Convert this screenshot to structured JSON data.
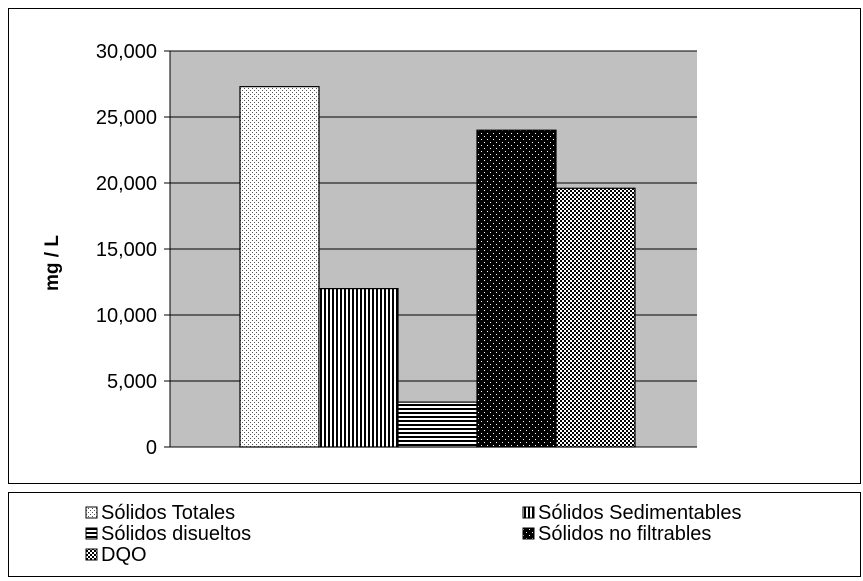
{
  "chart_data": {
    "type": "bar",
    "ylabel": "mg / L",
    "xlabel": "",
    "ylim": [
      0,
      30000
    ],
    "yticks": [
      0,
      5000,
      10000,
      15000,
      20000,
      25000,
      30000
    ],
    "ytick_labels": [
      "0",
      "5,000",
      "10,000",
      "15,000",
      "20,000",
      "25,000",
      "30,000"
    ],
    "grid": "horizontal",
    "legend_position": "bottom",
    "plot_background": "#c0c0c0",
    "series": [
      {
        "name": "Sólidos Totales",
        "value": 27300,
        "pattern": "dots",
        "legend_row": 0,
        "legend_col": 0
      },
      {
        "name": "Sólidos Sedimentables",
        "value": 12000,
        "pattern": "vertical",
        "legend_row": 0,
        "legend_col": 1
      },
      {
        "name": "Sólidos disueltos",
        "value": 3400,
        "pattern": "horizontal",
        "legend_row": 1,
        "legend_col": 0
      },
      {
        "name": "Sólidos no filtrables",
        "value": 24000,
        "pattern": "brick",
        "legend_row": 1,
        "legend_col": 1
      },
      {
        "name": "DQO",
        "value": 19600,
        "pattern": "checker",
        "legend_row": 2,
        "legend_col": 0
      }
    ]
  }
}
